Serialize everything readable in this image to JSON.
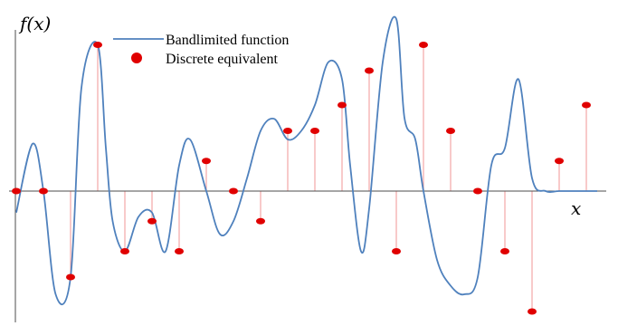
{
  "chart_data": {
    "type": "line",
    "ylabel": "f(x)",
    "xlabel": "x",
    "legend": {
      "position": "top-center",
      "entries": [
        "Bandlimited function",
        "Discrete equivalent"
      ]
    },
    "colors": {
      "curve": "#4f81bd",
      "samples": "#e00000",
      "stems": "#f4a6a6",
      "axis": "#4d4d4d"
    },
    "xlim": [
      0,
      21.4
    ],
    "ylim": [
      -1.4,
      2.0
    ],
    "series": [
      {
        "name": "Bandlimited function",
        "x": [
          0,
          0.6,
          1,
          1.45,
          2,
          2.4,
          3,
          3.3,
          3.55,
          4,
          4.5,
          5,
          5.5,
          6,
          6.4,
          7,
          7.5,
          8,
          8.5,
          9,
          9.5,
          10,
          10.5,
          11,
          11.5,
          12,
          12.3,
          12.7,
          13,
          13.5,
          14,
          14.3,
          14.7,
          15,
          15.5,
          16,
          16.5,
          17,
          17.5,
          18,
          18.5,
          19,
          19.5,
          20,
          20.5,
          21,
          21.4
        ],
        "y": [
          -0.25,
          0.55,
          0,
          -1.2,
          -1.0,
          1.2,
          1.7,
          0.5,
          -0.35,
          -0.7,
          -0.3,
          -0.25,
          -0.7,
          0.3,
          0.6,
          0.0,
          -0.5,
          -0.35,
          0.15,
          0.7,
          0.84,
          0.6,
          0.7,
          1.0,
          1.5,
          1.3,
          0.3,
          -0.7,
          -0.2,
          1.5,
          2.0,
          0.85,
          0.6,
          0.0,
          -0.8,
          -1.1,
          -1.2,
          -1.0,
          0.3,
          0.5,
          1.3,
          0.15,
          0.0,
          0.0,
          0.0,
          0.0,
          0.0
        ]
      },
      {
        "name": "Discrete equivalent",
        "x": [
          0,
          1,
          2,
          3,
          4,
          5,
          6,
          7,
          8,
          9,
          10,
          11,
          12,
          13,
          14,
          15,
          16,
          17,
          18,
          19,
          20,
          21
        ],
        "y": [
          0,
          0,
          -1.0,
          1.7,
          -0.7,
          -0.35,
          -0.7,
          0.35,
          0,
          -0.35,
          0.7,
          0.7,
          1.0,
          1.4,
          -0.7,
          1.7,
          0.7,
          0,
          -0.7,
          -1.4,
          0.35,
          1.0
        ]
      }
    ]
  }
}
